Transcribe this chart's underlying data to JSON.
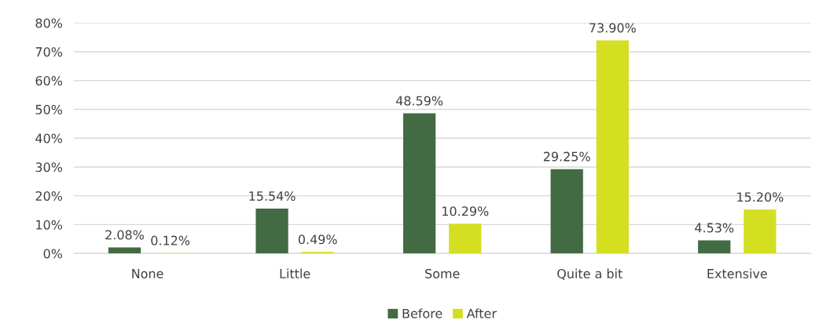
{
  "chart_data": {
    "type": "bar",
    "categories": [
      "None",
      "Little",
      "Some",
      "Quite a bit",
      "Extensive"
    ],
    "series": [
      {
        "name": "Before",
        "color": "#436b43",
        "values": [
          2.08,
          15.54,
          48.59,
          29.25,
          4.53
        ],
        "value_labels": [
          "2.08%",
          "15.54%",
          "48.59%",
          "29.25%",
          "4.53%"
        ]
      },
      {
        "name": "After",
        "color": "#d4df22",
        "values": [
          0.12,
          0.49,
          10.29,
          73.9,
          15.2
        ],
        "value_labels": [
          "0.12%",
          "0.49%",
          "10.29%",
          "73.90%",
          "15.20%"
        ]
      }
    ],
    "ylim": [
      0,
      80
    ],
    "yticks": [
      {
        "value": 0,
        "label": "0%"
      },
      {
        "value": 10,
        "label": "10%"
      },
      {
        "value": 20,
        "label": "20%"
      },
      {
        "value": 30,
        "label": "30%"
      },
      {
        "value": 40,
        "label": "40%"
      },
      {
        "value": 50,
        "label": "50%"
      },
      {
        "value": 60,
        "label": "60%"
      },
      {
        "value": 70,
        "label": "70%"
      },
      {
        "value": 80,
        "label": "80%"
      }
    ],
    "grid": "y",
    "legend": "bottom"
  }
}
